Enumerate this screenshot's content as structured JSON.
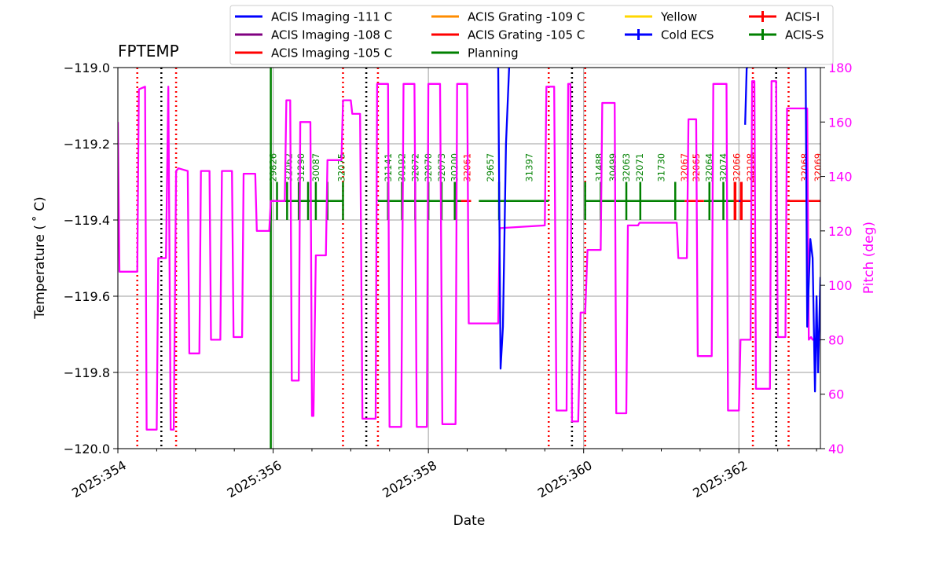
{
  "chart_data": {
    "type": "line",
    "title": "FPTEMP",
    "xlabel": "Date",
    "ylabel": "Temperature ($^\\circ$C)",
    "ylabel_display": "Temperature ( ˚ C)",
    "y2label": "Pitch (deg)",
    "xlim": [
      354.0,
      363.05
    ],
    "ylim": [
      -120.0,
      -119.0
    ],
    "y2lim": [
      40,
      180
    ],
    "x_ticks": [
      354,
      356,
      358,
      360,
      362
    ],
    "x_tick_labels": [
      "2025:354",
      "2025:356",
      "2025:358",
      "2025:360",
      "2025:362"
    ],
    "y_ticks": [
      -119.0,
      -119.2,
      -119.4,
      -119.6,
      -119.8,
      -120.0
    ],
    "y_tick_labels": [
      "−119.0",
      "−119.2",
      "−119.4",
      "−119.6",
      "−119.8",
      "−120.0"
    ],
    "y2_ticks": [
      40,
      60,
      80,
      100,
      120,
      140,
      160,
      180
    ],
    "y2_tick_labels": [
      "40",
      "60",
      "80",
      "100",
      "120",
      "140",
      "160",
      "180"
    ],
    "grid": true,
    "colors": {
      "imaging111": "#0000ff",
      "imaging108": "#800080",
      "imaging105": "#ff0000",
      "grating109": "#ff8c00",
      "grating105": "#ff0000",
      "planning": "#008000",
      "yellow": "#ffd700",
      "coldecs": "#0000ff",
      "acisi": "#ff0000",
      "aciss": "#008000",
      "pitch": "#ff00ff",
      "perigee": "#000000",
      "radzone": "#ff0000",
      "grid": "#b0b0b0"
    },
    "legend": {
      "position": "top-center",
      "entries": [
        {
          "label": "ACIS Imaging -111 C",
          "color": "#0000ff",
          "style": "line"
        },
        {
          "label": "ACIS Imaging -108 C",
          "color": "#800080",
          "style": "line"
        },
        {
          "label": "ACIS Imaging -105 C",
          "color": "#ff0000",
          "style": "line"
        },
        {
          "label": "ACIS Grating -109 C",
          "color": "#ff8c00",
          "style": "line"
        },
        {
          "label": "ACIS Grating -105 C",
          "color": "#ff0000",
          "style": "line"
        },
        {
          "label": "Planning",
          "color": "#008000",
          "style": "line"
        },
        {
          "label": "Yellow",
          "color": "#ffd700",
          "style": "line"
        },
        {
          "label": "Cold ECS",
          "color": "#0000ff",
          "style": "errorbar"
        },
        {
          "label": "ACIS-I",
          "color": "#ff0000",
          "style": "errorbar"
        },
        {
          "label": "ACIS-S",
          "color": "#008000",
          "style": "errorbar"
        }
      ]
    },
    "limit_lines": [
      {
        "name": "Planning",
        "x": 355.97,
        "color": "#008000"
      }
    ],
    "perigee_lines": [
      354.56,
      357.2,
      359.85,
      362.48
    ],
    "radzone_lines": [
      354.25,
      354.75,
      356.9,
      357.35,
      359.55,
      360.02,
      362.18,
      362.64
    ],
    "obsids": [
      {
        "x": 356.0,
        "label": "29826",
        "instrument": "ACIS-S"
      },
      {
        "x": 356.2,
        "label": "32062",
        "instrument": "ACIS-S"
      },
      {
        "x": 356.36,
        "label": "31290",
        "instrument": "ACIS-S"
      },
      {
        "x": 356.55,
        "label": "30087",
        "instrument": "ACIS-S"
      },
      {
        "x": 356.88,
        "label": "32075",
        "instrument": "ACIS-S"
      },
      {
        "x": 357.48,
        "label": "31141",
        "instrument": "ACIS-S"
      },
      {
        "x": 357.66,
        "label": "30192",
        "instrument": "ACIS-S"
      },
      {
        "x": 357.83,
        "label": "32072",
        "instrument": "ACIS-S"
      },
      {
        "x": 358.0,
        "label": "32070",
        "instrument": "ACIS-S"
      },
      {
        "x": 358.17,
        "label": "32073",
        "instrument": "ACIS-S"
      },
      {
        "x": 358.34,
        "label": "30200",
        "instrument": "ACIS-S"
      },
      {
        "x": 358.5,
        "label": "32061",
        "instrument": "ACIS-I"
      },
      {
        "x": 358.8,
        "label": "29657",
        "instrument": "ACIS-S"
      },
      {
        "x": 359.3,
        "label": "31397",
        "instrument": "ACIS-S"
      },
      {
        "x": 360.2,
        "label": "31488",
        "instrument": "ACIS-S"
      },
      {
        "x": 360.38,
        "label": "30499",
        "instrument": "ACIS-S"
      },
      {
        "x": 360.55,
        "label": "32063",
        "instrument": "ACIS-S"
      },
      {
        "x": 360.72,
        "label": "32071",
        "instrument": "ACIS-S"
      },
      {
        "x": 361.0,
        "label": "31730",
        "instrument": "ACIS-S"
      },
      {
        "x": 361.3,
        "label": "32067",
        "instrument": "ACIS-I"
      },
      {
        "x": 361.45,
        "label": "32065",
        "instrument": "ACIS-I"
      },
      {
        "x": 361.62,
        "label": "32064",
        "instrument": "ACIS-S"
      },
      {
        "x": 361.8,
        "label": "32074",
        "instrument": "ACIS-S"
      },
      {
        "x": 361.97,
        "label": "32066",
        "instrument": "ACIS-I"
      },
      {
        "x": 362.15,
        "label": "32108",
        "instrument": "ACIS-I"
      },
      {
        "x": 362.85,
        "label": "32068",
        "instrument": "ACIS-I"
      },
      {
        "x": 363.02,
        "label": "32069",
        "instrument": "ACIS-I"
      }
    ],
    "aciss_segments": [
      {
        "x0": 355.97,
        "x1": 356.18,
        "y": -119.35
      },
      {
        "x0": 356.18,
        "x1": 356.9,
        "y": -119.35
      },
      {
        "x0": 357.35,
        "x1": 358.5,
        "y": -119.35
      },
      {
        "x0": 358.65,
        "x1": 359.55,
        "y": -119.35
      },
      {
        "x0": 360.02,
        "x1": 361.3,
        "y": -119.35
      },
      {
        "x0": 361.55,
        "x1": 361.95,
        "y": -119.35
      }
    ],
    "aciss_ticks": [
      355.97,
      356.05,
      356.18,
      356.33,
      356.45,
      356.55,
      356.7,
      356.9,
      357.48,
      357.66,
      357.83,
      358.0,
      358.17,
      358.34,
      358.91,
      360.02,
      360.22,
      360.55,
      360.73,
      361.18,
      361.62,
      361.8
    ],
    "acisi_segments": [
      {
        "x0": 358.42,
        "x1": 358.55,
        "y": -119.35
      },
      {
        "x0": 361.3,
        "x1": 361.55,
        "y": -119.35
      },
      {
        "x0": 361.95,
        "x1": 362.15,
        "y": -119.35
      },
      {
        "x0": 362.62,
        "x1": 363.05,
        "y": -119.35
      }
    ],
    "acisi_ticks": [
      361.95,
      362.03
    ],
    "coldecs_segments": [
      {
        "x0": 362.0,
        "x1": 362.02,
        "y": -119.35
      }
    ],
    "series": [
      {
        "name": "Pitch",
        "axis": "y2",
        "color": "#ff00ff",
        "x": [
          354.0,
          354.02,
          354.25,
          354.27,
          354.35,
          354.37,
          354.5,
          354.52,
          354.62,
          354.65,
          354.68,
          354.72,
          354.75,
          354.78,
          354.9,
          354.92,
          355.05,
          355.07,
          355.18,
          355.2,
          355.32,
          355.34,
          355.47,
          355.49,
          355.6,
          355.62,
          355.77,
          355.79,
          355.95,
          355.97,
          356.15,
          356.17,
          356.22,
          356.24,
          356.33,
          356.35,
          356.48,
          356.5,
          356.52,
          356.55,
          356.68,
          356.7,
          356.88,
          356.9,
          357.0,
          357.02,
          357.12,
          357.15,
          357.32,
          357.34,
          357.48,
          357.5,
          357.65,
          357.68,
          357.82,
          357.85,
          357.98,
          358.0,
          358.15,
          358.18,
          358.35,
          358.37,
          358.5,
          358.52,
          358.9,
          358.92,
          359.5,
          359.52,
          359.62,
          359.65,
          359.78,
          359.8,
          359.83,
          359.85,
          359.93,
          359.96,
          360.02,
          360.05,
          360.22,
          360.24,
          360.4,
          360.42,
          360.55,
          360.57,
          360.7,
          360.72,
          361.2,
          361.22,
          361.33,
          361.35,
          361.45,
          361.47,
          361.65,
          361.67,
          361.84,
          361.86,
          362.0,
          362.02,
          362.15,
          362.17,
          362.2,
          362.22,
          362.4,
          362.42,
          362.48,
          362.5,
          362.6,
          362.62,
          362.88,
          362.9,
          362.93,
          362.95,
          363.05
        ],
        "values": [
          160,
          105,
          105,
          172,
          173,
          47,
          47,
          110,
          110,
          173,
          47,
          47,
          142,
          143,
          142,
          75,
          75,
          142,
          142,
          80,
          80,
          142,
          142,
          81,
          81,
          141,
          141,
          120,
          120,
          131,
          131,
          168,
          168,
          65,
          65,
          160,
          160,
          52,
          52,
          111,
          111,
          146,
          146,
          168,
          168,
          163,
          163,
          51,
          51,
          174,
          174,
          48,
          48,
          174,
          174,
          48,
          48,
          174,
          174,
          49,
          49,
          174,
          174,
          86,
          86,
          121,
          122,
          173,
          173,
          54,
          54,
          174,
          174,
          50,
          50,
          90,
          90,
          113,
          113,
          167,
          167,
          53,
          53,
          122,
          122,
          123,
          123,
          110,
          110,
          161,
          161,
          74,
          74,
          174,
          174,
          54,
          54,
          80,
          80,
          175,
          175,
          62,
          62,
          175,
          175,
          81,
          81,
          165,
          165,
          80,
          81,
          80,
          80
        ]
      },
      {
        "name": "ACIS Imaging -111 C",
        "axis": "y",
        "color": "#0000ff",
        "x": [
          358.9,
          358.93,
          358.96,
          359.0,
          359.04
        ],
        "values": [
          -119.0,
          -119.79,
          -119.68,
          -119.2,
          -119.0
        ]
      },
      {
        "name": "ACIS Imaging -111 C (b)",
        "axis": "y",
        "color": "#0000ff",
        "x": [
          362.08,
          362.1,
          362.12
        ],
        "values": [
          -119.15,
          -119.0,
          -119.0
        ]
      },
      {
        "name": "ACIS Imaging -111 C (c)",
        "axis": "y",
        "color": "#0000ff",
        "x": [
          362.86,
          362.88,
          362.92,
          362.95,
          362.98,
          363.0,
          363.02,
          363.05
        ],
        "values": [
          -119.0,
          -119.68,
          -119.45,
          -119.5,
          -119.85,
          -119.6,
          -119.8,
          -119.55
        ]
      }
    ]
  }
}
